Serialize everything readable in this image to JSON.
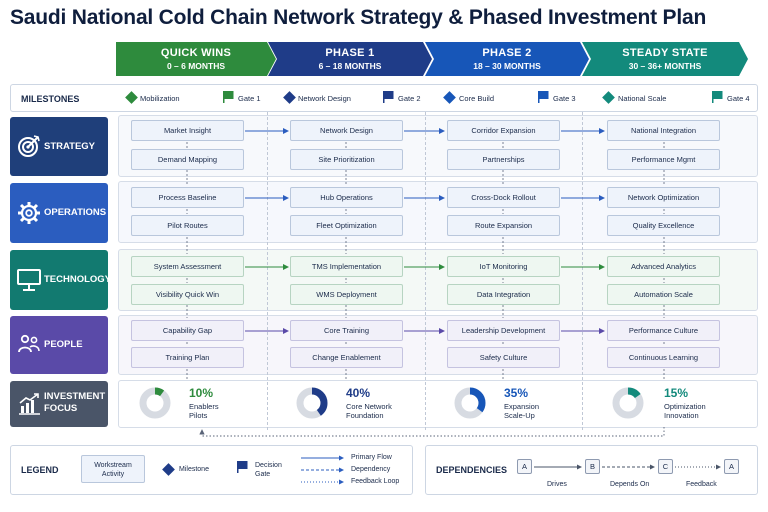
{
  "title": "Saudi National Cold Chain Network Strategy & Phased Investment Plan",
  "colors": {
    "green": "#2e8b3d",
    "navy": "#1f3c88",
    "blue": "#1756b8",
    "teal": "#138a7c",
    "strategy": "#1f3f7a",
    "operations": "#2b5dbf",
    "technology": "#127a70",
    "people": "#5a4aa8",
    "investment": "#4a5568"
  },
  "phases": [
    {
      "name": "QUICK WINS",
      "range": "0 – 6 MONTHS"
    },
    {
      "name": "PHASE 1",
      "range": "6 – 18 MONTHS"
    },
    {
      "name": "PHASE 2",
      "range": "18 – 30 MONTHS"
    },
    {
      "name": "STEADY STATE",
      "range": "30 – 36+ MONTHS"
    }
  ],
  "milestones": {
    "label": "MILESTONES",
    "items": [
      {
        "milestone": "Mobilization",
        "gate": "Gate 1"
      },
      {
        "milestone": "Network Design",
        "gate": "Gate 2"
      },
      {
        "milestone": "Core Build",
        "gate": "Gate 3"
      },
      {
        "milestone": "National Scale",
        "gate": "Gate 4"
      }
    ]
  },
  "rows": {
    "strategy": {
      "label": "STRATEGY",
      "icon": "target-icon",
      "top": [
        "Market Insight",
        "Network Design",
        "Corridor Expansion",
        "National Integration"
      ],
      "bottom": [
        "Demand Mapping",
        "Site Prioritization",
        "Partnerships",
        "Performance Mgmt"
      ]
    },
    "operations": {
      "label": "OPERATIONS",
      "icon": "gear-icon",
      "top": [
        "Process Baseline",
        "Hub Operations",
        "Cross-Dock Rollout",
        "Network Optimization"
      ],
      "bottom": [
        "Pilot Routes",
        "Fleet Optimization",
        "Route Expansion",
        "Quality Excellence"
      ]
    },
    "technology": {
      "label": "TECHNOLOGY",
      "icon": "monitor-icon",
      "top": [
        "System Assessment",
        "TMS Implementation",
        "IoT Monitoring",
        "Advanced Analytics"
      ],
      "bottom": [
        "Visibility Quick Win",
        "WMS Deployment",
        "Data Integration",
        "Automation Scale"
      ]
    },
    "people": {
      "label": "PEOPLE",
      "icon": "people-icon",
      "top": [
        "Capability Gap",
        "Core Training",
        "Leadership Development",
        "Performance Culture"
      ],
      "bottom": [
        "Training Plan",
        "Change Enablement",
        "Safety Culture",
        "Continuous Learning"
      ]
    }
  },
  "investment": {
    "label_line1": "INVESTMENT",
    "label_line2": "FOCUS",
    "icon": "bar-chart-icon",
    "items": [
      {
        "pct": "10%",
        "value": 10,
        "line1": "Enablers",
        "line2": "Pilots",
        "color": "#2e8b3d"
      },
      {
        "pct": "40%",
        "value": 40,
        "line1": "Core Network",
        "line2": "Foundation",
        "color": "#1f3c88"
      },
      {
        "pct": "35%",
        "value": 35,
        "line1": "Expansion",
        "line2": "Scale-Up",
        "color": "#1756b8"
      },
      {
        "pct": "15%",
        "value": 15,
        "line1": "Optimization",
        "line2": "Innovation",
        "color": "#138a7c"
      }
    ]
  },
  "legend": {
    "title": "LEGEND",
    "workstream_line1": "Workstream",
    "workstream_line2": "Activity",
    "milestone": "Milestone",
    "gate_line1": "Decision",
    "gate_line2": "Gate",
    "primary": "Primary Flow",
    "dependency": "Dependency",
    "feedback": "Feedback Loop"
  },
  "dependencies": {
    "title": "DEPENDENCIES",
    "nodes": [
      "A",
      "B",
      "C",
      "A"
    ],
    "drives": "Drives",
    "depends": "Depends On",
    "feedback": "Feedback"
  }
}
